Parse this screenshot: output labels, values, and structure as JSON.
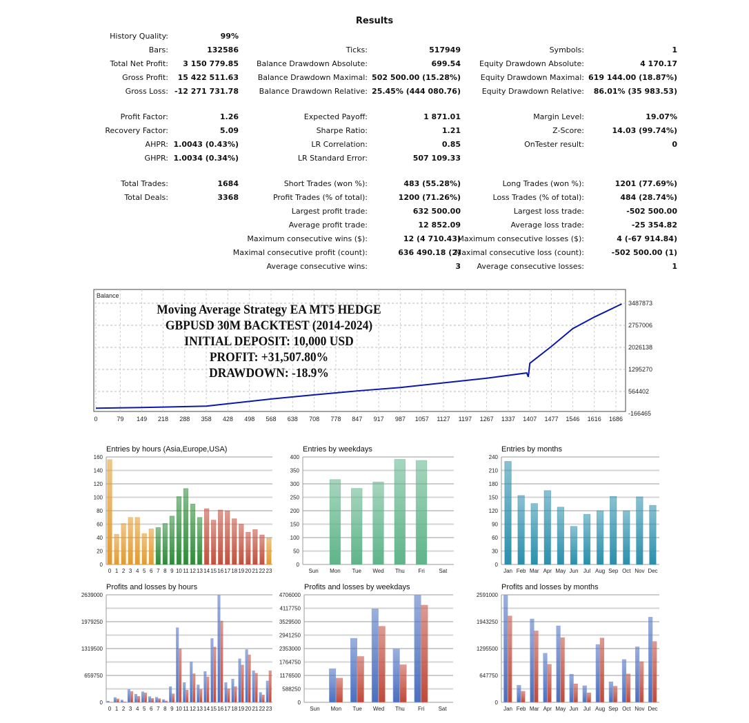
{
  "title": "Results",
  "stat_groups": [
    [
      [
        [
          "History Quality:",
          "99%"
        ],
        null,
        null
      ],
      [
        [
          "Bars:",
          "132586"
        ],
        [
          "Ticks:",
          "517949"
        ],
        [
          "Symbols:",
          "1"
        ]
      ],
      [
        [
          "Total Net Profit:",
          "3 150 779.85"
        ],
        [
          "Balance Drawdown Absolute:",
          "699.54"
        ],
        [
          "Equity Drawdown Absolute:",
          "4 170.17"
        ]
      ],
      [
        [
          "Gross Profit:",
          "15 422 511.63"
        ],
        [
          "Balance Drawdown Maximal:",
          "502 500.00 (15.28%)"
        ],
        [
          "Equity Drawdown Maximal:",
          "619 144.00 (18.87%)"
        ]
      ],
      [
        [
          "Gross Loss:",
          "-12 271 731.78"
        ],
        [
          "Balance Drawdown Relative:",
          "25.45% (444 080.76)"
        ],
        [
          "Equity Drawdown Relative:",
          "86.01% (35 983.53)"
        ]
      ]
    ],
    [
      [
        [
          "Profit Factor:",
          "1.26"
        ],
        [
          "Expected Payoff:",
          "1 871.01"
        ],
        [
          "Margin Level:",
          "19.07%"
        ]
      ],
      [
        [
          "Recovery Factor:",
          "5.09"
        ],
        [
          "Sharpe Ratio:",
          "1.21"
        ],
        [
          "Z-Score:",
          "14.03 (99.74%)"
        ]
      ],
      [
        [
          "AHPR:",
          "1.0043 (0.43%)"
        ],
        [
          "LR Correlation:",
          "0.85"
        ],
        [
          "OnTester result:",
          "0"
        ]
      ],
      [
        [
          "GHPR:",
          "1.0034 (0.34%)"
        ],
        [
          "LR Standard Error:",
          "507 109.33"
        ],
        null
      ]
    ],
    [
      [
        [
          "Total Trades:",
          "1684"
        ],
        [
          "Short Trades (won %):",
          "483 (55.28%)"
        ],
        [
          "Long Trades (won %):",
          "1201 (77.69%)"
        ]
      ],
      [
        [
          "Total Deals:",
          "3368"
        ],
        [
          "Profit Trades (% of total):",
          "1200 (71.26%)"
        ],
        [
          "Loss Trades (% of total):",
          "484 (28.74%)"
        ]
      ],
      [
        null,
        [
          "Largest profit trade:",
          "632 500.00"
        ],
        [
          "Largest loss trade:",
          "-502 500.00"
        ]
      ],
      [
        null,
        [
          "Average profit trade:",
          "12 852.09"
        ],
        [
          "Average loss trade:",
          "-25 354.82"
        ]
      ],
      [
        null,
        [
          "Maximum consecutive wins ($):",
          "12 (4 710.43)"
        ],
        [
          "Maximum consecutive losses ($):",
          "4 (-67 914.84)"
        ]
      ],
      [
        null,
        [
          "Maximal consecutive profit (count):",
          "636 490.18 (2)"
        ],
        [
          "Maximal consecutive loss (count):",
          "-502 500.00 (1)"
        ]
      ],
      [
        null,
        [
          "Average consecutive wins:",
          "3"
        ],
        [
          "Average consecutive losses:",
          "1"
        ]
      ]
    ]
  ],
  "overlay_text": [
    "Moving Average Strategy EA MT5 HEDGE",
    "GBPUSD 30M BACKTEST (2014-2024)",
    "INITIAL DEPOSIT: 10,000 USD",
    "PROFIT: +31,507.80%",
    "DRAWDOWN: -18.9%"
  ],
  "colors": {
    "balance_line": "#0a17a8",
    "profit": "#4a6fc0",
    "loss": "#c0493a",
    "asia": "#e39a2e",
    "europe": "#2f8a3a",
    "usa": "#c0503e",
    "weekdays": "#5fb48a",
    "months": "#2a8fac"
  },
  "chart_data": [
    {
      "type": "line",
      "title": "Balance",
      "x": [
        0,
        149,
        358,
        568,
        708,
        847,
        987,
        1127,
        1267,
        1397,
        1402,
        1407,
        1477,
        1546,
        1616,
        1686,
        1705
      ],
      "values": [
        10000,
        32000,
        78000,
        315000,
        453000,
        583000,
        697000,
        850000,
        1003000,
        1179000,
        1050000,
        1500000,
        2058000,
        2647000,
        3030000,
        3373000,
        3465000
      ],
      "x_ticks": [
        0,
        79,
        149,
        218,
        288,
        358,
        428,
        498,
        568,
        638,
        708,
        778,
        847,
        917,
        987,
        1057,
        1127,
        1197,
        1267,
        1337,
        1407,
        1477,
        1546,
        1616,
        1686
      ],
      "y_ticks": [
        "3487873",
        "2757006",
        "2026138",
        "1295270",
        "564402",
        "-166465"
      ],
      "ylim": [
        -166465,
        3487873
      ],
      "xlim": [
        0,
        1686
      ]
    },
    {
      "type": "bar",
      "title": "Entries by hours (Asia,Europe,USA)",
      "categories": [
        "0",
        "1",
        "2",
        "3",
        "4",
        "5",
        "6",
        "7",
        "8",
        "9",
        "10",
        "11",
        "12",
        "13",
        "14",
        "15",
        "16",
        "17",
        "18",
        "19",
        "20",
        "21",
        "22",
        "23"
      ],
      "values": [
        156,
        45,
        61,
        70,
        70,
        46,
        53,
        55,
        61,
        72,
        101,
        113,
        90,
        70,
        83,
        66,
        81,
        80,
        68,
        60,
        48,
        52,
        44,
        39
      ],
      "sessions": [
        "asia",
        "asia",
        "asia",
        "asia",
        "asia",
        "asia",
        "asia",
        "europe",
        "europe",
        "europe",
        "europe",
        "europe",
        "europe",
        "europe",
        "usa",
        "usa",
        "usa",
        "usa",
        "usa",
        "usa",
        "usa",
        "usa",
        "usa",
        "asia"
      ],
      "ylim": [
        0,
        160
      ],
      "grid_step": 20,
      "y_ticks": [
        "0",
        "20",
        "40",
        "60",
        "80",
        "100",
        "120",
        "140",
        "160"
      ]
    },
    {
      "type": "bar",
      "title": "Entries by weekdays",
      "categories": [
        "Sun",
        "Mon",
        "Tue",
        "Wed",
        "Thu",
        "Fri",
        "Sat"
      ],
      "values": [
        0,
        316,
        283,
        307,
        391,
        387,
        0
      ],
      "ylim": [
        0,
        400
      ],
      "grid_step": 50,
      "y_ticks": [
        "0",
        "50",
        "100",
        "150",
        "200",
        "250",
        "300",
        "350",
        "400"
      ]
    },
    {
      "type": "bar",
      "title": "Entries by months",
      "categories": [
        "Jan",
        "Feb",
        "Mar",
        "Apr",
        "May",
        "Jun",
        "Jul",
        "Aug",
        "Sep",
        "Oct",
        "Nov",
        "Dec"
      ],
      "values": [
        230,
        154,
        136,
        165,
        128,
        85,
        112,
        120,
        152,
        120,
        151,
        132
      ],
      "ylim": [
        0,
        240
      ],
      "grid_step": 30,
      "y_ticks": [
        "0",
        "30",
        "60",
        "90",
        "120",
        "150",
        "180",
        "210",
        "240"
      ]
    },
    {
      "type": "bar",
      "title": "Profits and losses by hours",
      "categories": [
        "0",
        "1",
        "2",
        "3",
        "4",
        "5",
        "6",
        "7",
        "8",
        "9",
        "10",
        "11",
        "12",
        "13",
        "14",
        "15",
        "16",
        "17",
        "18",
        "19",
        "20",
        "21",
        "22",
        "23"
      ],
      "series": [
        {
          "name": "Profits",
          "values": [
            28000,
            119000,
            56000,
            316000,
            198000,
            260000,
            141000,
            124000,
            68000,
            384000,
            1831000,
            486000,
            995000,
            429000,
            757000,
            1565000,
            2639000,
            486000,
            571000,
            1068000,
            1294000,
            774000,
            243000,
            525000
          ]
        },
        {
          "name": "Losses",
          "values": [
            5000,
            85000,
            11000,
            266000,
            147000,
            232000,
            96000,
            90000,
            34000,
            209000,
            1305000,
            300000,
            701000,
            322000,
            622000,
            1356000,
            1995000,
            333000,
            384000,
            915000,
            1164000,
            712000,
            181000,
            774000
          ]
        }
      ],
      "ylim": [
        0,
        2639000
      ],
      "grid_step": 329875,
      "y_ticks": [
        "0",
        "659750",
        "1319500",
        "1979250",
        "2639000"
      ]
    },
    {
      "type": "bar",
      "title": "Profits and losses by weekdays",
      "categories": [
        "Sun",
        "Mon",
        "Tue",
        "Wed",
        "Thu",
        "Fri",
        "Sat"
      ],
      "series": [
        {
          "name": "Profits",
          "values": [
            0,
            1471000,
            2801000,
            4092000,
            2348000,
            4706000,
            0
          ]
        },
        {
          "name": "Losses",
          "values": [
            0,
            1058000,
            2005000,
            3326000,
            1643000,
            4253000,
            0
          ]
        }
      ],
      "ylim": [
        0,
        4706000
      ],
      "grid_step": 588250,
      "y_ticks": [
        "0",
        "588250",
        "1176500",
        "1764750",
        "2353000",
        "2941250",
        "3529500",
        "4117750",
        "4706000"
      ]
    },
    {
      "type": "bar",
      "title": "Profits and losses by months",
      "categories": [
        "Jan",
        "Feb",
        "Mar",
        "Apr",
        "May",
        "Jun",
        "Jul",
        "Aug",
        "Sep",
        "Oct",
        "Nov",
        "Dec"
      ],
      "series": [
        {
          "name": "Profits",
          "values": [
            2591000,
            411000,
            2008000,
            1182000,
            1842000,
            677000,
            399000,
            1393000,
            494000,
            1032000,
            1337000,
            2052000
          ]
        },
        {
          "name": "Losses",
          "values": [
            2080000,
            266000,
            1720000,
            915000,
            1559000,
            444000,
            227000,
            1548000,
            388000,
            682000,
            982000,
            1465000
          ]
        }
      ],
      "ylim": [
        0,
        2591000
      ],
      "grid_step": 323875,
      "y_ticks": [
        "0",
        "647750",
        "1295500",
        "1943250",
        "2591000"
      ]
    }
  ]
}
